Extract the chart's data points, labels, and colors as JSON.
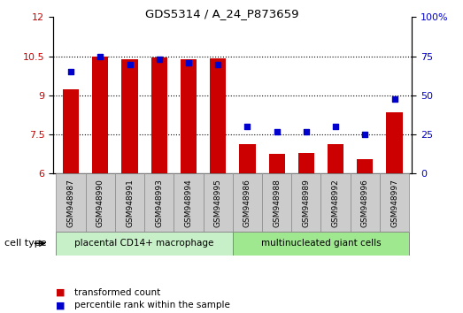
{
  "title": "GDS5314 / A_24_P873659",
  "samples": [
    "GSM948987",
    "GSM948990",
    "GSM948991",
    "GSM948993",
    "GSM948994",
    "GSM948995",
    "GSM948986",
    "GSM948988",
    "GSM948989",
    "GSM948992",
    "GSM948996",
    "GSM948997"
  ],
  "transformed_count": [
    9.25,
    10.5,
    10.4,
    10.45,
    10.4,
    10.42,
    7.15,
    6.75,
    6.8,
    7.15,
    6.55,
    8.35
  ],
  "percentile_rank": [
    65,
    75,
    70,
    73,
    71,
    70,
    30,
    27,
    27,
    30,
    25,
    48
  ],
  "groups": [
    {
      "label": "placental CD14+ macrophage",
      "count": 6,
      "color": "#c8f0c8"
    },
    {
      "label": "multinucleated giant cells",
      "count": 6,
      "color": "#a0e890"
    }
  ],
  "ylim_left": [
    6,
    12
  ],
  "ylim_right": [
    0,
    100
  ],
  "yticks_left": [
    6,
    7.5,
    9,
    10.5,
    12
  ],
  "yticks_right": [
    0,
    25,
    50,
    75,
    100
  ],
  "bar_color": "#cc0000",
  "dot_color": "#0000cc",
  "bar_bottom": 6,
  "grid_color": "black",
  "legend_items": [
    {
      "label": "transformed count",
      "color": "#cc0000"
    },
    {
      "label": "percentile rank within the sample",
      "color": "#0000cc"
    }
  ],
  "cell_type_label": "cell type",
  "group_header_bg": "#cccccc",
  "tick_label_color_left": "#cc0000",
  "tick_label_color_right": "#0000cc"
}
